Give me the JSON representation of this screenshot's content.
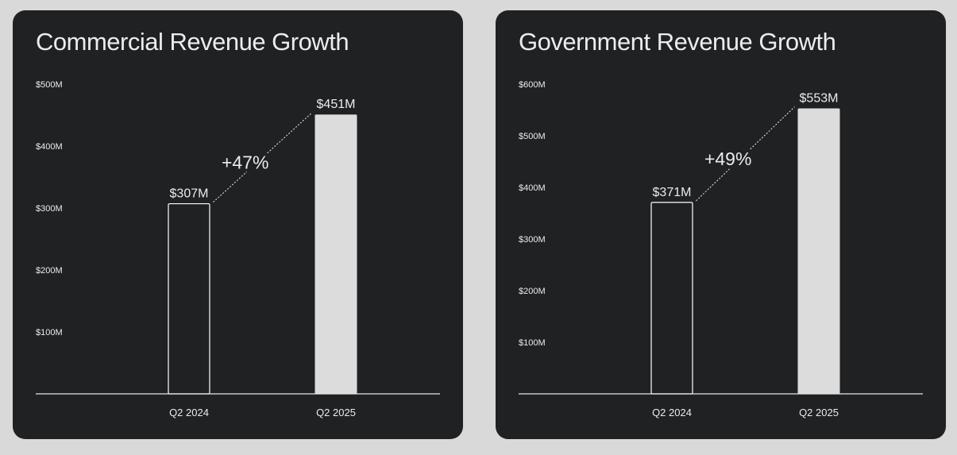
{
  "colors": {
    "background": "#d9d9d9",
    "card": "#1f2123",
    "text": "#ececec",
    "axis": "#e6e6e6",
    "bar_outline": "#ffffff",
    "bar_fill": "#dcdcdc"
  },
  "chart_data": [
    {
      "type": "bar",
      "title": "Commercial Revenue Growth",
      "categories": [
        "Q2 2024",
        "Q2 2025"
      ],
      "values": [
        307,
        451
      ],
      "value_labels": [
        "$307M",
        "$451M"
      ],
      "bar_styles": [
        "outline",
        "filled"
      ],
      "growth_label": "+47%",
      "yticks": [
        100,
        200,
        300,
        400,
        500
      ],
      "ytick_labels": [
        "$100M",
        "$200M",
        "$300M",
        "$400M",
        "$500M"
      ],
      "ylim": [
        0,
        500
      ],
      "grid": false,
      "legend": "none"
    },
    {
      "type": "bar",
      "title": "Government Revenue Growth",
      "categories": [
        "Q2 2024",
        "Q2 2025"
      ],
      "values": [
        371,
        553
      ],
      "value_labels": [
        "$371M",
        "$553M"
      ],
      "bar_styles": [
        "outline",
        "filled"
      ],
      "growth_label": "+49%",
      "yticks": [
        100,
        200,
        300,
        400,
        500,
        600
      ],
      "ytick_labels": [
        "$100M",
        "$200M",
        "$300M",
        "$400M",
        "$500M",
        "$600M"
      ],
      "ylim": [
        0,
        600
      ],
      "grid": false,
      "legend": "none"
    }
  ]
}
